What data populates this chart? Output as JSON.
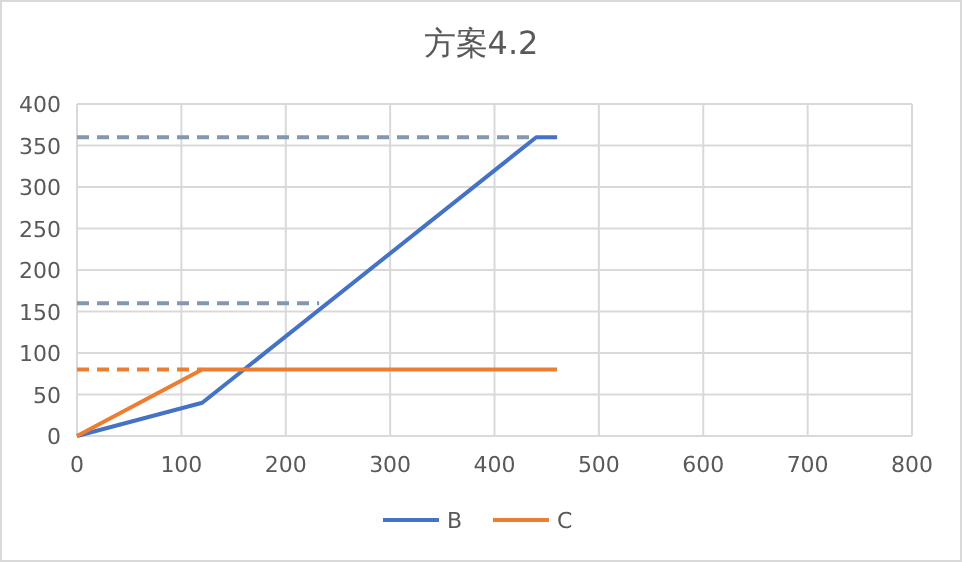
{
  "chart_data": {
    "type": "line",
    "title": "方案4.2",
    "xlim": [
      0,
      800
    ],
    "xticks": [
      0,
      100,
      200,
      300,
      400,
      500,
      600,
      700,
      800
    ],
    "ylim": [
      0,
      400
    ],
    "yticks": [
      0,
      50,
      100,
      150,
      200,
      250,
      300,
      350,
      400
    ],
    "grid": true,
    "legend": "bottom",
    "marker": "none",
    "series": [
      {
        "name": "B",
        "color": "#4472c4",
        "x": [
          0,
          120,
          440,
          460
        ],
        "values": [
          0,
          40,
          360,
          360
        ]
      },
      {
        "name": "C",
        "color": "#ed7d31",
        "x": [
          0,
          120,
          460
        ],
        "values": [
          0,
          80,
          80
        ]
      },
      {
        "color": "#8497b0",
        "line_style": "dashed",
        "x": [
          0,
          440
        ],
        "values": [
          360,
          360
        ]
      },
      {
        "color": "#8497b0",
        "line_style": "dashed",
        "x": [
          0,
          232
        ],
        "values": [
          160,
          160
        ]
      },
      {
        "color": "#ed7d31",
        "line_style": "dashed",
        "x": [
          0,
          120
        ],
        "values": [
          80,
          80
        ]
      }
    ]
  }
}
